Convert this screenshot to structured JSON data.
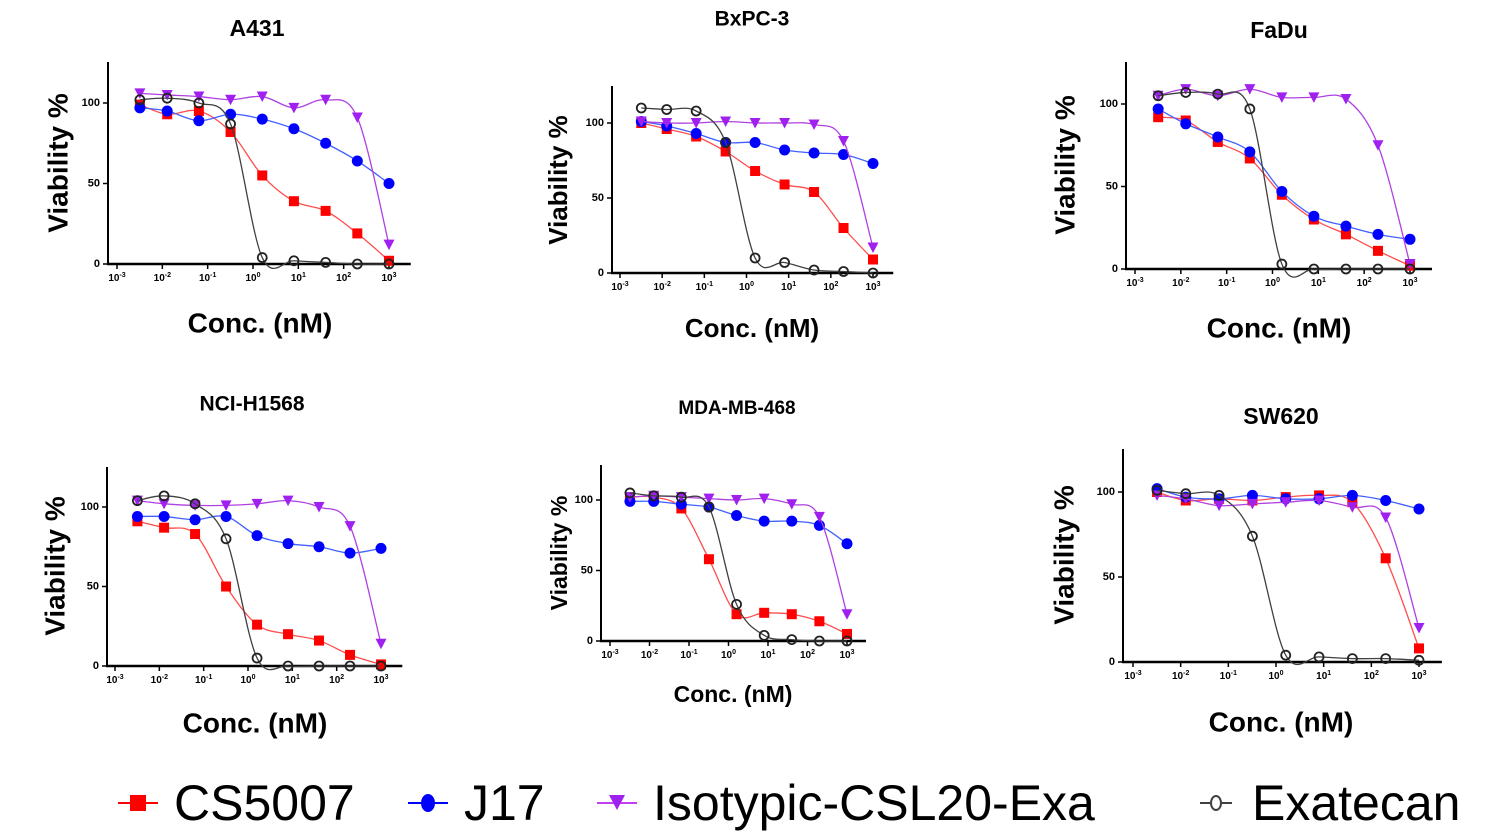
{
  "chart_data": {
    "type": "scatter",
    "figure_kind": "dose-response panels (log x) with fitted sigmoid curves",
    "xlabel": "Conc. (nM)",
    "ylabel": "Viability %",
    "x_scale": "log10",
    "x_tick_labels": [
      "10-3",
      "10-2",
      "10-1",
      "100",
      "101",
      "102",
      "103"
    ],
    "x_tick_exponents": [
      -3,
      -2,
      -1,
      0,
      1,
      2,
      3
    ],
    "xlim": [
      0.001,
      1000
    ],
    "y_tick_labels": [
      "0",
      "50",
      "100"
    ],
    "y_ticks": [
      0,
      50,
      100
    ],
    "ylim": [
      0,
      125
    ],
    "x": [
      0.0032,
      0.0128,
      0.064,
      0.32,
      1.6,
      8,
      40,
      200,
      1000
    ],
    "series_styles": [
      {
        "name": "CS5007",
        "color": "#ff0000",
        "marker": "square",
        "filled": true
      },
      {
        "name": "J17",
        "color": "#0000ff",
        "marker": "circle",
        "filled": true
      },
      {
        "name": "Isotypic-CSL20-Exa",
        "color": "#a020f0",
        "marker": "triangle-down",
        "filled": true
      },
      {
        "name": "Exatecan",
        "color": "#404040",
        "marker": "circle",
        "filled": false
      }
    ],
    "legend": {
      "placement": "bottom",
      "entries": [
        "CS5007",
        "J17",
        "Isotypic-CSL20-Exa",
        "Exatecan"
      ]
    },
    "panels": [
      {
        "title": "A431",
        "series": [
          {
            "name": "CS5007",
            "values": [
              99,
              93,
              95,
              82,
              55,
              39,
              33,
              19,
              2
            ]
          },
          {
            "name": "J17",
            "values": [
              97,
              95,
              89,
              93,
              90,
              84,
              75,
              64,
              50
            ]
          },
          {
            "name": "Isotypic-CSL20-Exa",
            "values": [
              106,
              105,
              104,
              102,
              104,
              97,
              102,
              91,
              12
            ]
          },
          {
            "name": "Exatecan",
            "values": [
              102,
              103,
              100,
              87,
              4,
              2,
              1,
              0,
              0
            ]
          }
        ]
      },
      {
        "title": "BxPC-3",
        "series": [
          {
            "name": "CS5007",
            "values": [
              100,
              96,
              91,
              81,
              68,
              59,
              54,
              30,
              9
            ]
          },
          {
            "name": "J17",
            "values": [
              101,
              98,
              93,
              87,
              87,
              82,
              80,
              79,
              73
            ]
          },
          {
            "name": "Isotypic-CSL20-Exa",
            "values": [
              101,
              100,
              100,
              101,
              100,
              100,
              99,
              88,
              17
            ]
          },
          {
            "name": "Exatecan",
            "values": [
              110,
              109,
              108,
              87,
              10,
              7,
              2,
              1,
              0
            ]
          }
        ]
      },
      {
        "title": "FaDu",
        "series": [
          {
            "name": "CS5007",
            "values": [
              92,
              90,
              77,
              67,
              45,
              30,
              21,
              11,
              2
            ]
          },
          {
            "name": "J17",
            "values": [
              97,
              88,
              80,
              71,
              47,
              32,
              26,
              21,
              18
            ]
          },
          {
            "name": "Isotypic-CSL20-Exa",
            "values": [
              105,
              109,
              105,
              109,
              104,
              104,
              103,
              75,
              3
            ]
          },
          {
            "name": "Exatecan",
            "values": [
              105,
              107,
              106,
              97,
              3,
              0,
              0,
              0,
              0
            ]
          }
        ]
      },
      {
        "title": "NCI-H1568",
        "series": [
          {
            "name": "CS5007",
            "values": [
              91,
              87,
              83,
              50,
              26,
              20,
              16,
              7,
              1
            ]
          },
          {
            "name": "J17",
            "values": [
              94,
              94,
              92,
              94,
              82,
              77,
              75,
              71,
              74
            ]
          },
          {
            "name": "Isotypic-CSL20-Exa",
            "values": [
              104,
              102,
              101,
              101,
              102,
              104,
              100,
              88,
              14
            ]
          },
          {
            "name": "Exatecan",
            "values": [
              104,
              107,
              102,
              80,
              5,
              0,
              0,
              0,
              0
            ]
          }
        ]
      },
      {
        "title": "MDA-MB-468",
        "series": [
          {
            "name": "CS5007",
            "values": [
              102,
              102,
              94,
              58,
              19,
              20,
              19,
              14,
              5
            ]
          },
          {
            "name": "J17",
            "values": [
              99,
              99,
              97,
              95,
              89,
              85,
              85,
              82,
              69
            ]
          },
          {
            "name": "Isotypic-CSL20-Exa",
            "values": [
              102,
              103,
              102,
              101,
              100,
              101,
              97,
              88,
              19
            ]
          },
          {
            "name": "Exatecan",
            "values": [
              105,
              103,
              102,
              95,
              26,
              4,
              1,
              0,
              0
            ]
          }
        ]
      },
      {
        "title": "SW620",
        "series": [
          {
            "name": "CS5007",
            "values": [
              100,
              95,
              96,
              95,
              97,
              98,
              94,
              61,
              8
            ]
          },
          {
            "name": "J17",
            "values": [
              102,
              97,
              96,
              98,
              96,
              96,
              98,
              95,
              90
            ]
          },
          {
            "name": "Isotypic-CSL20-Exa",
            "values": [
              98,
              96,
              92,
              93,
              94,
              95,
              91,
              85,
              20
            ]
          },
          {
            "name": "Exatecan",
            "values": [
              101,
              99,
              98,
              74,
              4,
              3,
              2,
              2,
              1
            ]
          }
        ]
      }
    ]
  }
}
